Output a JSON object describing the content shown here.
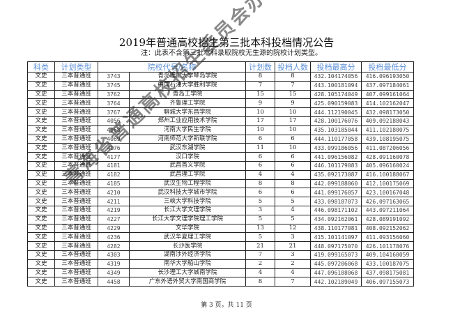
{
  "title": "2019年普通高校招生第三批本科投档情况公告",
  "note": "注：此表不含第三批本科录取院校无生源的院校计划类型。",
  "header_color": "#5b8fd6",
  "columns": [
    "科类",
    "计划类型",
    "院校代号/名称",
    "计划数",
    "投档人数",
    "投档最高分",
    "投档最低分"
  ],
  "rows": [
    [
      "文史",
      "三本普通班",
      "3743",
      "青岛理工大学琴岛学院",
      "8",
      "8",
      "432.104174056",
      "416.096193050"
    ],
    [
      "文史",
      "三本普通班",
      "3745",
      "中国石油大学胜利学院",
      "7",
      "7",
      "443.100181094",
      "437.097184061"
    ],
    [
      "文史",
      "三本普通班",
      "3762",
      "青岛工学院",
      "15",
      "15",
      "428.105174049",
      "407.099161064"
    ],
    [
      "文史",
      "三本普通班",
      "3764",
      "齐鲁理工学院",
      "9",
      "9",
      "425.090159083",
      "414.102162047"
    ],
    [
      "文史",
      "三本普通班",
      "3767",
      "聊城大学东昌学院",
      "10",
      "10",
      "444.112190045",
      "432.098173050"
    ],
    [
      "文史",
      "三本普通班",
      "4056",
      "郑州工业应用技术学院",
      "17",
      "17",
      "428.100176076",
      "409.092188043"
    ],
    [
      "文史",
      "三本普通班",
      "4068",
      "河南大学民生学院",
      "10",
      "10",
      "435.103185044",
      "411.102180075"
    ],
    [
      "文史",
      "三本普通班",
      "4069",
      "河南师范大学新联学院",
      "6",
      "6",
      "444.110177058",
      "439.108195075"
    ],
    [
      "文史",
      "三本普通班",
      "4176",
      "武汉东湖学院",
      "11",
      "10",
      "433.099186056",
      "411.087206056"
    ],
    [
      "文史",
      "三本普通班",
      "4177",
      "汉口学院",
      "6",
      "6",
      "441.096156082",
      "428.091160078"
    ],
    [
      "文史",
      "三本普通班",
      "4181",
      "武昌首义学院",
      "6",
      "6",
      "446.101179083",
      "405.096160024"
    ],
    [
      "文史",
      "三本普通班",
      "4182",
      "武昌理工学院",
      "4",
      "4",
      "435.092173087",
      "416.100188067"
    ],
    [
      "文史",
      "三本普通班",
      "4185",
      "武汉生物工程学院",
      "8",
      "8",
      "442.099188060",
      "412.100175069"
    ],
    [
      "文史",
      "三本普通班",
      "4210",
      "武汉科技大学城市学院",
      "6",
      "6",
      "441.099176057",
      "423.100167048"
    ],
    [
      "文史",
      "三本普通班",
      "4211",
      "三峡大学科技学院",
      "5",
      "5",
      "433.098187073",
      "426.097163065"
    ],
    [
      "文史",
      "三本普通班",
      "4219",
      "长江大学文理学院",
      "3",
      "4",
      "446.098171102",
      "443.097211064"
    ],
    [
      "文史",
      "三本普通班",
      "4227",
      "长江大学文理学院理工学院",
      "5",
      "5",
      "434.092162061",
      "428.089191092"
    ],
    [
      "文史",
      "三本普通班",
      "4229",
      "文华学院",
      "13",
      "12",
      "438.110177081",
      "408.092152062"
    ],
    [
      "文史",
      "三本普通班",
      "4236",
      "武汉华夏理工学院",
      "5",
      "3",
      "415.101141097",
      "411.093156060"
    ],
    [
      "文史",
      "三本普通班",
      "4282",
      "长沙医学院",
      "21",
      "21",
      "448.097175070",
      "426.101178076"
    ],
    [
      "文史",
      "三本普通班",
      "4303",
      "湖南涉外经济学院",
      "7",
      "3",
      "419.099165073",
      "409.104160059"
    ],
    [
      "文史",
      "三本普通班",
      "4319",
      "南华大学船山学院",
      "2",
      "2",
      "445.097206068",
      "433.100187075"
    ],
    [
      "文史",
      "三本普通班",
      "4349",
      "长沙理工大学城南学院",
      "4",
      "4",
      "447.096188068",
      "437.098175081"
    ],
    [
      "文史",
      "三本普通班",
      "4458",
      "广东外语外贸大学南国商学院",
      "8",
      "7",
      "442.102189049",
      "406.097155073"
    ]
  ],
  "footer": "第 3 页，共 11 页",
  "watermark": "青海省普通高校招生委员会办公室"
}
